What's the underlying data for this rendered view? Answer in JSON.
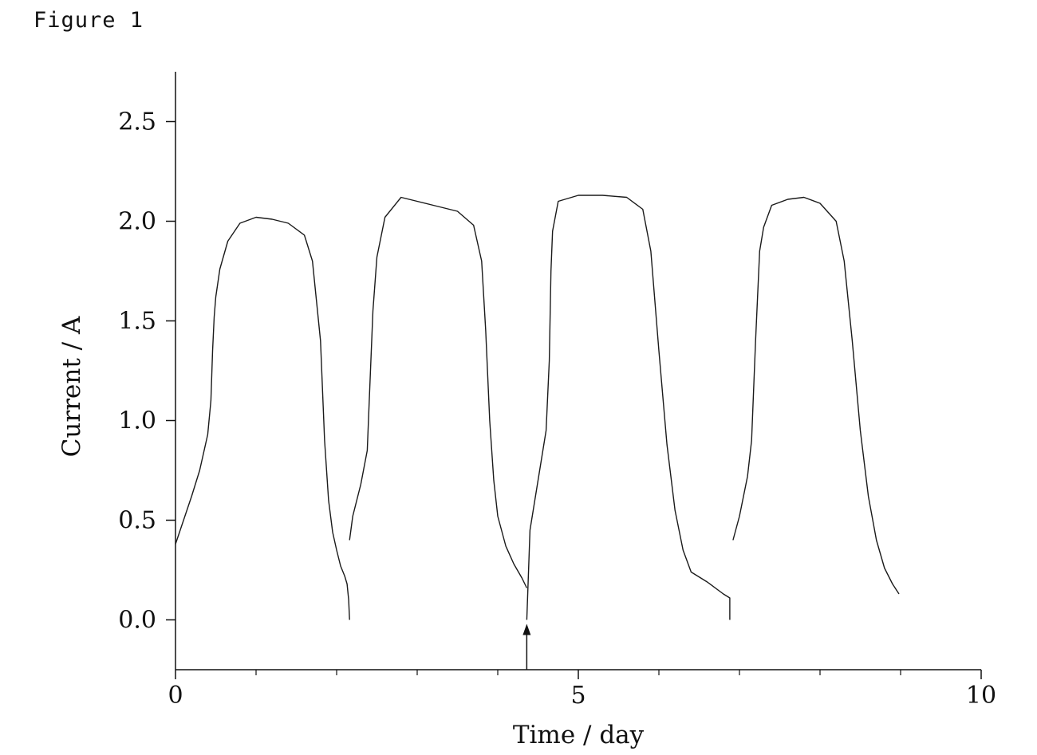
{
  "figure": {
    "label": "Figure 1"
  },
  "chart_data": {
    "type": "line",
    "title": "",
    "xlabel": "Time / day",
    "ylabel": "Current / A",
    "xlim": [
      0,
      10
    ],
    "ylim": [
      -0.25,
      2.75
    ],
    "x_ticks": [
      0,
      5,
      10
    ],
    "x_minor_ticks": [
      1,
      2,
      3,
      4,
      6,
      7,
      8,
      9
    ],
    "y_ticks": [
      0.0,
      0.5,
      1.0,
      1.5,
      2.0,
      2.5
    ],
    "y_tick_labels": [
      "0.0",
      "0.5",
      "1.0",
      "1.5",
      "2.0",
      "2.5"
    ],
    "grid": false,
    "line_color": "#1a1a1a",
    "series": [
      {
        "name": "",
        "x": [
          0.0,
          0.1,
          0.2,
          0.3,
          0.4,
          0.44,
          0.46,
          0.48,
          0.5,
          0.55,
          0.65,
          0.8,
          1.0,
          1.2,
          1.4,
          1.6,
          1.7,
          1.8,
          1.85,
          1.9,
          1.95,
          2.0,
          2.05,
          2.1,
          2.13,
          2.15,
          2.16,
          2.16,
          2.2,
          2.3,
          2.38,
          2.4,
          2.45,
          2.5,
          2.6,
          2.8,
          3.0,
          3.2,
          3.5,
          3.7,
          3.8,
          3.85,
          3.9,
          3.95,
          4.0,
          4.1,
          4.2,
          4.3,
          4.36,
          4.36,
          4.4,
          4.5,
          4.6,
          4.64,
          4.66,
          4.68,
          4.75,
          5.0,
          5.3,
          5.6,
          5.8,
          5.9,
          6.0,
          6.1,
          6.2,
          6.3,
          6.4,
          6.6,
          6.8,
          6.88,
          6.88,
          6.92,
          7.0,
          7.1,
          7.15,
          7.2,
          7.25,
          7.3,
          7.4,
          7.6,
          7.8,
          8.0,
          8.2,
          8.3,
          8.4,
          8.5,
          8.6,
          8.7,
          8.8,
          8.9,
          8.98
        ],
        "y": [
          0.38,
          0.5,
          0.62,
          0.75,
          0.93,
          1.1,
          1.35,
          1.52,
          1.62,
          1.76,
          1.9,
          1.99,
          2.02,
          2.01,
          1.99,
          1.93,
          1.8,
          1.4,
          0.9,
          0.6,
          0.44,
          0.35,
          0.27,
          0.22,
          0.18,
          0.1,
          0.0,
          0.4,
          0.52,
          0.68,
          0.85,
          1.05,
          1.55,
          1.82,
          2.02,
          2.12,
          2.1,
          2.08,
          2.05,
          1.98,
          1.8,
          1.45,
          1.0,
          0.7,
          0.52,
          0.37,
          0.28,
          0.21,
          0.16,
          0.0,
          0.45,
          0.7,
          0.95,
          1.3,
          1.75,
          1.95,
          2.1,
          2.13,
          2.13,
          2.12,
          2.06,
          1.85,
          1.35,
          0.88,
          0.55,
          0.35,
          0.24,
          0.19,
          0.13,
          0.11,
          0.0,
          0.4,
          0.52,
          0.72,
          0.9,
          1.4,
          1.85,
          1.97,
          2.08,
          2.11,
          2.12,
          2.09,
          2.0,
          1.8,
          1.4,
          0.95,
          0.62,
          0.4,
          0.26,
          0.18,
          0.13
        ],
        "segments": [
          [
            0,
            26
          ],
          [
            27,
            48
          ],
          [
            49,
            70
          ],
          [
            71,
            90
          ]
        ]
      }
    ],
    "annotations": [
      {
        "type": "arrow",
        "direction": "up",
        "x": 4.36,
        "y_from": -0.25,
        "y_to": -0.02
      }
    ]
  }
}
